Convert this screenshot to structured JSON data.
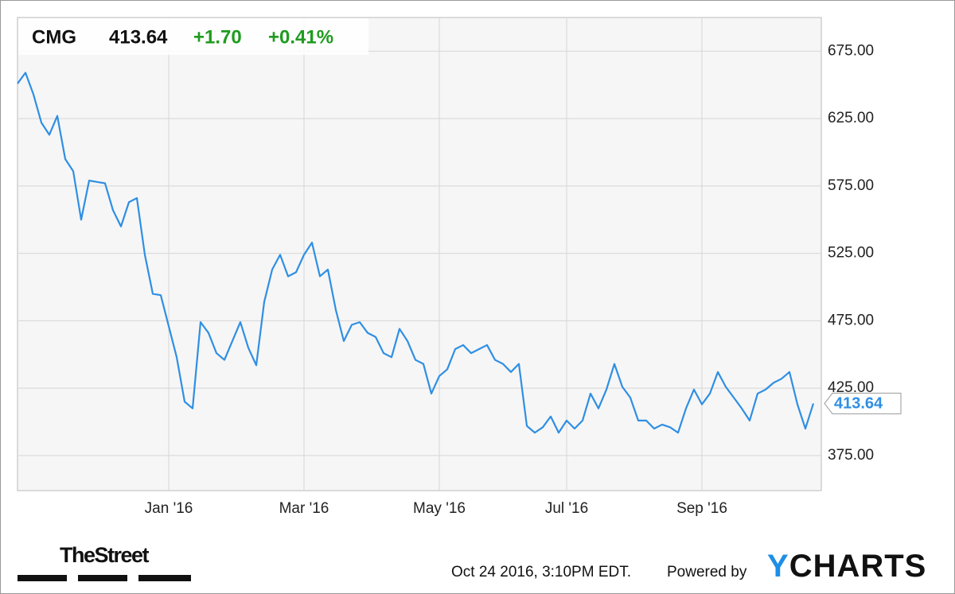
{
  "chart_data": {
    "type": "line",
    "ticker": "CMG",
    "price": "413.64",
    "change": "+1.70",
    "change_pct": "+0.41%",
    "color": "#2f8fe3",
    "categories": [
      null,
      null,
      null,
      null,
      null,
      null,
      null,
      null,
      null,
      null,
      null,
      null,
      null,
      null,
      null,
      null,
      null,
      null,
      null,
      "Jan '16",
      null,
      null,
      null,
      null,
      null,
      null,
      null,
      null,
      null,
      null,
      null,
      null,
      null,
      null,
      null,
      null,
      "Mar '16",
      null,
      null,
      null,
      null,
      null,
      null,
      null,
      null,
      null,
      null,
      null,
      null,
      null,
      null,
      null,
      null,
      "May '16",
      null,
      null,
      null,
      null,
      null,
      null,
      null,
      null,
      null,
      null,
      null,
      null,
      null,
      null,
      null,
      "Jul '16",
      null,
      null,
      null,
      null,
      null,
      null,
      null,
      null,
      null,
      null,
      null,
      null,
      null,
      null,
      null,
      null,
      "Sep '16",
      null,
      null,
      null,
      null,
      null,
      null,
      null,
      null,
      null,
      null,
      null,
      null,
      null,
      null
    ],
    "values": [
      651,
      659,
      643,
      622,
      613,
      627,
      595,
      586,
      550,
      579,
      578,
      577,
      557,
      545,
      563,
      566,
      524,
      495,
      494,
      471,
      448,
      415,
      410,
      474,
      466,
      451,
      446,
      460,
      474,
      455,
      442,
      489,
      513,
      524,
      508,
      511,
      524,
      533,
      508,
      513,
      483,
      460,
      472,
      474,
      466,
      463,
      451,
      448,
      469,
      460,
      446,
      443,
      421,
      434,
      439,
      454,
      457,
      451,
      454,
      457,
      446,
      443,
      437,
      443,
      397,
      392,
      396,
      404,
      392,
      401,
      395,
      401,
      421,
      410,
      424,
      443,
      426,
      418,
      401,
      401,
      395,
      398,
      396,
      392,
      410,
      424,
      413,
      421,
      437,
      426,
      418,
      410,
      401,
      421,
      424,
      429,
      432,
      437,
      413,
      395,
      413.64
    ],
    "ylim": [
      349,
      700
    ],
    "yticks": [
      {
        "value": 375,
        "label": "375.00"
      },
      {
        "value": 425,
        "label": "425.00"
      },
      {
        "value": 475,
        "label": "475.00"
      },
      {
        "value": 525,
        "label": "525.00"
      },
      {
        "value": 575,
        "label": "575.00"
      },
      {
        "value": 625,
        "label": "625.00"
      },
      {
        "value": 675,
        "label": "675.00"
      }
    ],
    "grid": true
  },
  "footer": {
    "publisher": "TheStreet",
    "timestamp": "Oct 24 2016, 3:10PM EDT.",
    "powered": "Powered by",
    "brand": "YCHARTS"
  }
}
